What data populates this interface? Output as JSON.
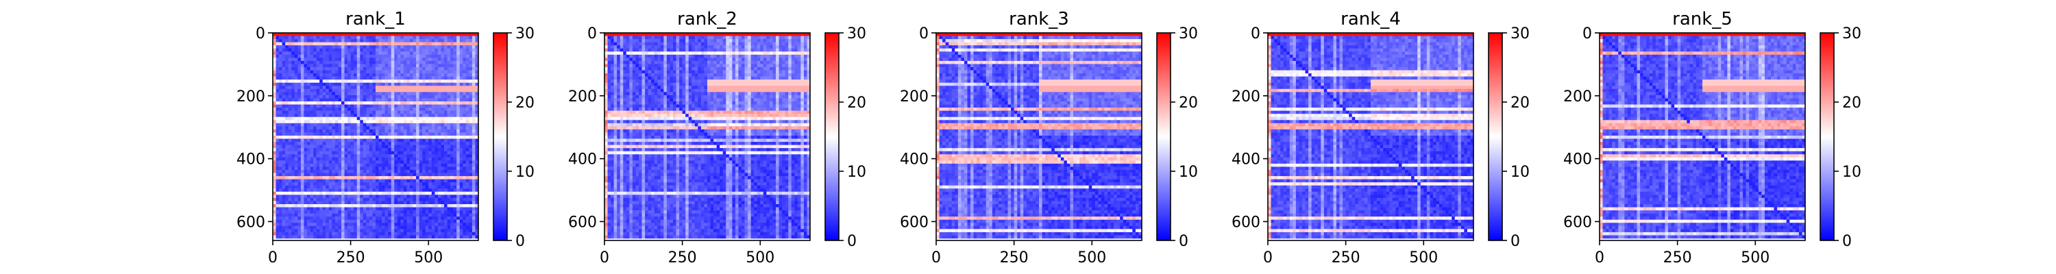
{
  "chart_data": [
    {
      "type": "heatmap",
      "title": "rank_1",
      "matrix_size": 660,
      "xlim": [
        0,
        660
      ],
      "ylim": [
        660,
        0
      ],
      "xticks": [
        0,
        250,
        500
      ],
      "xtick_labels": [
        "0",
        "250",
        "500"
      ],
      "yticks": [
        0,
        200,
        400,
        600
      ],
      "ytick_labels": [
        "0",
        "200",
        "400",
        "600"
      ],
      "colorbar": {
        "min": 0,
        "max": 30,
        "ticks": [
          0,
          10,
          20,
          30
        ],
        "tick_labels": [
          "0",
          "10",
          "20",
          "30"
        ],
        "colormap": "bwr"
      }
    },
    {
      "type": "heatmap",
      "title": "rank_2",
      "matrix_size": 660,
      "xlim": [
        0,
        660
      ],
      "ylim": [
        660,
        0
      ],
      "xticks": [
        0,
        250,
        500
      ],
      "xtick_labels": [
        "0",
        "250",
        "500"
      ],
      "yticks": [
        0,
        200,
        400,
        600
      ],
      "ytick_labels": [
        "0",
        "200",
        "400",
        "600"
      ],
      "colorbar": {
        "min": 0,
        "max": 30,
        "ticks": [
          0,
          10,
          20,
          30
        ],
        "tick_labels": [
          "0",
          "10",
          "20",
          "30"
        ],
        "colormap": "bwr"
      }
    },
    {
      "type": "heatmap",
      "title": "rank_3",
      "matrix_size": 660,
      "xlim": [
        0,
        660
      ],
      "ylim": [
        660,
        0
      ],
      "xticks": [
        0,
        250,
        500
      ],
      "xtick_labels": [
        "0",
        "250",
        "500"
      ],
      "yticks": [
        0,
        200,
        400,
        600
      ],
      "ytick_labels": [
        "0",
        "200",
        "400",
        "600"
      ],
      "colorbar": {
        "min": 0,
        "max": 30,
        "ticks": [
          0,
          10,
          20,
          30
        ],
        "tick_labels": [
          "0",
          "10",
          "20",
          "30"
        ],
        "colormap": "bwr"
      }
    },
    {
      "type": "heatmap",
      "title": "rank_4",
      "matrix_size": 660,
      "xlim": [
        0,
        660
      ],
      "ylim": [
        660,
        0
      ],
      "xticks": [
        0,
        250,
        500
      ],
      "xtick_labels": [
        "0",
        "250",
        "500"
      ],
      "yticks": [
        0,
        200,
        400,
        600
      ],
      "ytick_labels": [
        "0",
        "200",
        "400",
        "600"
      ],
      "colorbar": {
        "min": 0,
        "max": 30,
        "ticks": [
          0,
          10,
          20,
          30
        ],
        "tick_labels": [
          "0",
          "10",
          "20",
          "30"
        ],
        "colormap": "bwr"
      }
    },
    {
      "type": "heatmap",
      "title": "rank_5",
      "matrix_size": 660,
      "xlim": [
        0,
        660
      ],
      "ylim": [
        660,
        0
      ],
      "xticks": [
        0,
        250,
        500
      ],
      "xtick_labels": [
        "0",
        "250",
        "500"
      ],
      "yticks": [
        0,
        200,
        400,
        600
      ],
      "ytick_labels": [
        "0",
        "200",
        "400",
        "600"
      ],
      "colorbar": {
        "min": 0,
        "max": 30,
        "ticks": [
          0,
          10,
          20,
          30
        ],
        "tick_labels": [
          "0",
          "10",
          "20",
          "30"
        ],
        "colormap": "bwr"
      }
    }
  ],
  "colors": {
    "low": "#0000ff",
    "mid": "#ffffff",
    "high": "#ff0000",
    "axis": "#000000"
  }
}
